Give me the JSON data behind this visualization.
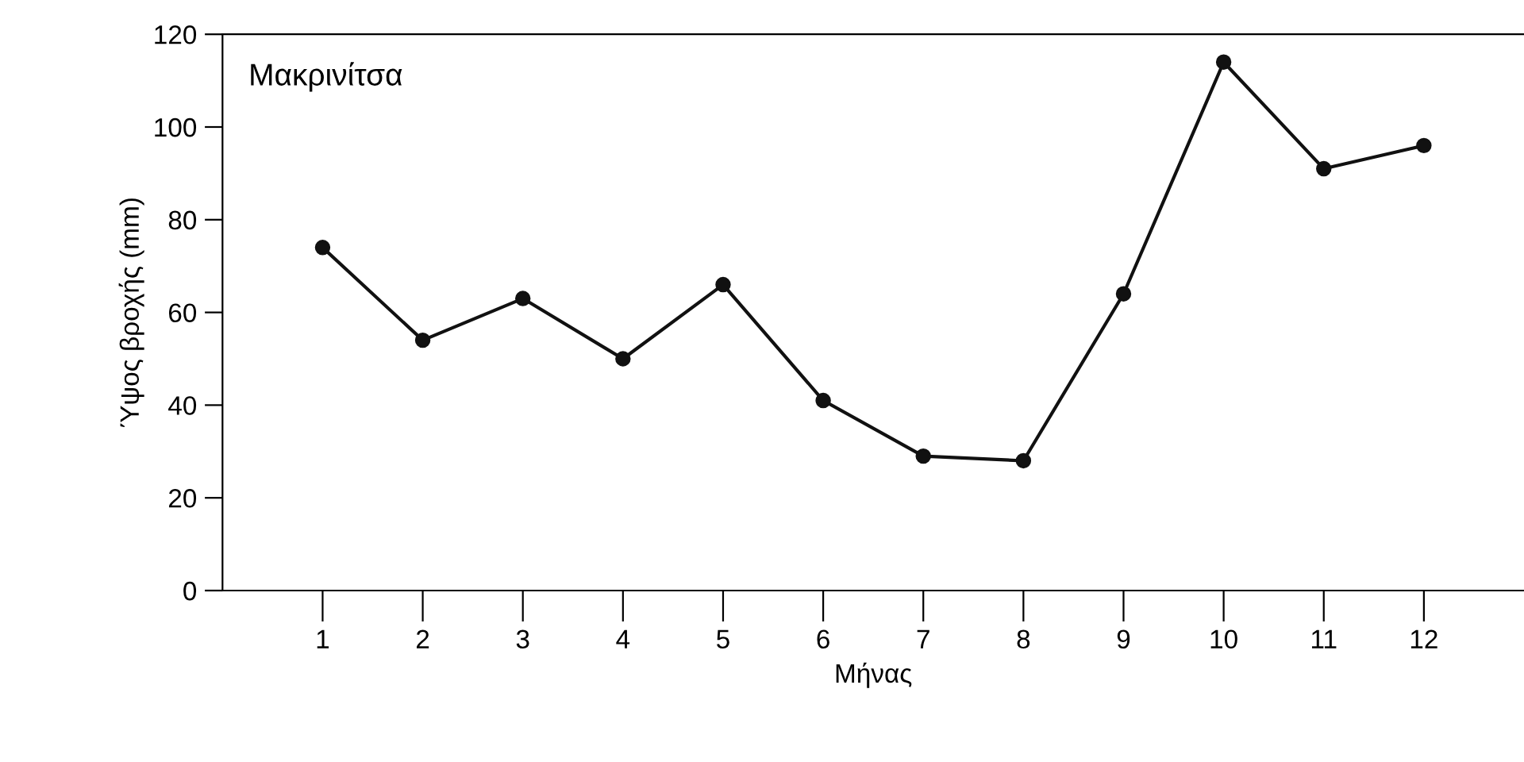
{
  "chart_data": {
    "type": "line",
    "title": "Μακρινίτσα",
    "xlabel": "Μήνας",
    "ylabel": "Ύψος βροχής (mm)",
    "x": [
      1,
      2,
      3,
      4,
      5,
      6,
      7,
      8,
      9,
      10,
      11,
      12
    ],
    "series": [
      {
        "color": "#111111",
        "values": [
          74,
          54,
          63,
          50,
          66,
          41,
          29,
          28,
          64,
          114,
          91,
          96
        ]
      }
    ],
    "xlim": [
      0,
      13
    ],
    "xticks": [
      1,
      2,
      3,
      4,
      5,
      6,
      7,
      8,
      9,
      10,
      11,
      12
    ],
    "ylim": [
      0,
      120
    ],
    "yticks": [
      0,
      20,
      40,
      60,
      80,
      100,
      120
    ],
    "marker": "circle",
    "line_style": "solid",
    "grid": false,
    "legend": false
  }
}
